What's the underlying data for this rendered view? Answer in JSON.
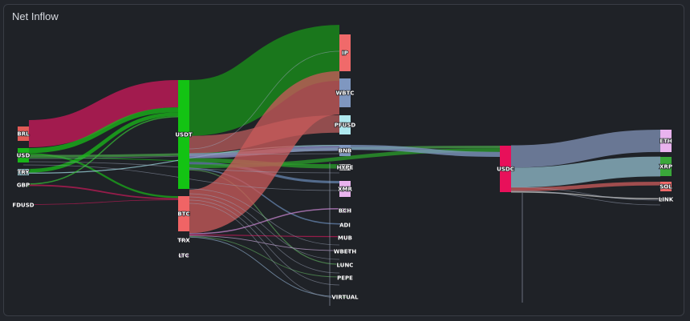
{
  "panel": {
    "title": "Net Inflow"
  },
  "chart_data": {
    "type": "sankey",
    "title": "Net Inflow",
    "nodes": [
      {
        "id": "BRL",
        "label": "BRL",
        "color": "#e05b56"
      },
      {
        "id": "USD",
        "label": "USD",
        "color": "#19b519"
      },
      {
        "id": "TRY",
        "label": "TRY",
        "color": "#a8e6ee"
      },
      {
        "id": "GBP",
        "label": "GBP",
        "color": "#36c236"
      },
      {
        "id": "FDUSD",
        "label": "FDUSD",
        "color": "#e6d3ea"
      },
      {
        "id": "USDT",
        "label": "USDT",
        "color": "#13c313"
      },
      {
        "id": "BTC",
        "label": "BTC",
        "color": "#f06465"
      },
      {
        "id": "TRX",
        "label": "TRX",
        "color": "#e6cfe9"
      },
      {
        "id": "LTC",
        "label": "LTC",
        "color": "#c995d5"
      },
      {
        "id": "IP",
        "label": "IP",
        "color": "#f06a6a"
      },
      {
        "id": "WBTC",
        "label": "WBTC",
        "color": "#7f97c0"
      },
      {
        "id": "PFUSD",
        "label": "PFUSD",
        "color": "#aee8ef"
      },
      {
        "id": "BNB",
        "label": "BNB",
        "color": "#7f97c0"
      },
      {
        "id": "HYPE",
        "label": "HYPE",
        "color": "#d6d6d6"
      },
      {
        "id": "XMR",
        "label": "XMR",
        "color": "#e9b3ee"
      },
      {
        "id": "BCH",
        "label": "BCH",
        "color": "#e9b3ee"
      },
      {
        "id": "ADI",
        "label": "ADI",
        "color": "#7f97c0"
      },
      {
        "id": "MUB",
        "label": "MUB",
        "color": "#e0335a"
      },
      {
        "id": "WBETH",
        "label": "WBETH",
        "color": "#d8c8e0"
      },
      {
        "id": "LUNC",
        "label": "LUNC",
        "color": "#7c9e7c"
      },
      {
        "id": "PEPE",
        "label": "PEPE",
        "color": "#5aa05a"
      },
      {
        "id": "VIRTUAL",
        "label": "VIRTUAL",
        "color": "#5aa05a"
      },
      {
        "id": "USDC",
        "label": "USDC",
        "color": "#e8105a"
      },
      {
        "id": "ETH",
        "label": "ETH",
        "color": "#e9b3ee"
      },
      {
        "id": "XRP",
        "label": "XRP",
        "color": "#3aa83a"
      },
      {
        "id": "SOL",
        "label": "SOL",
        "color": "#f06a6a"
      },
      {
        "id": "LINK",
        "label": "LINK",
        "color": "#d6d6d6"
      }
    ],
    "links": [
      {
        "source": "BRL",
        "target": "USDT",
        "value": 22,
        "color": "#c8195a"
      },
      {
        "source": "USD",
        "target": "USDT",
        "value": 4,
        "color": "#19b519"
      },
      {
        "source": "USD",
        "target": "BTC",
        "value": 1.5,
        "color": "#19b519"
      },
      {
        "source": "USD",
        "target": "USDC",
        "value": 2,
        "color": "#4aa84a"
      },
      {
        "source": "USD",
        "target": "HYPE",
        "value": 0.6,
        "color": "#19b519"
      },
      {
        "source": "TRY",
        "target": "USDT",
        "value": 3,
        "color": "#19b519"
      },
      {
        "source": "TRY",
        "target": "BNB",
        "value": 0.8,
        "color": "#a8e6ee"
      },
      {
        "source": "GBP",
        "target": "USDT",
        "value": 1,
        "color": "#36c236"
      },
      {
        "source": "GBP",
        "target": "BTC",
        "value": 1.2,
        "color": "#c8195a"
      },
      {
        "source": "FDUSD",
        "target": "BTC",
        "value": 0.4,
        "color": "#c8195a"
      },
      {
        "source": "USDT",
        "target": "IP",
        "value": 45,
        "color": "#1a8f1a"
      },
      {
        "source": "USDT",
        "target": "PFUSD",
        "value": 14,
        "color": "#b45a5a"
      },
      {
        "source": "USDT",
        "target": "BNB",
        "value": 4,
        "color": "#8c90c8"
      },
      {
        "source": "USDT",
        "target": "HYPE",
        "value": 3,
        "color": "#2a9a2a"
      },
      {
        "source": "USDT",
        "target": "XMR",
        "value": 2,
        "color": "#6a8ab8"
      },
      {
        "source": "USDT",
        "target": "USDC",
        "value": 3,
        "color": "#2a9a2a"
      },
      {
        "source": "USDT",
        "target": "ADI",
        "value": 1,
        "color": "#6a8ab8"
      },
      {
        "source": "USDT",
        "target": "LUNC",
        "value": 0.8,
        "color": "#5aa05a"
      },
      {
        "source": "BTC",
        "target": "WBTC",
        "value": 35,
        "color": "#c75a5a"
      },
      {
        "source": "BTC",
        "target": "BCH",
        "value": 1,
        "color": "#d08ad8"
      },
      {
        "source": "BTC",
        "target": "MUB",
        "value": 0.8,
        "color": "#c8195a"
      },
      {
        "source": "BTC",
        "target": "WBETH",
        "value": 0.6,
        "color": "#c8a8d8"
      },
      {
        "source": "BTC",
        "target": "PEPE",
        "value": 0.6,
        "color": "#5aa05a"
      },
      {
        "source": "BTC",
        "target": "VIRTUAL",
        "value": 0.6,
        "color": "#8aa8c8"
      },
      {
        "source": "BNB",
        "target": "USDC",
        "value": 4,
        "color": "#7f97c0"
      },
      {
        "source": "USDC",
        "target": "ETH",
        "value": 18,
        "color": "#7f90b4"
      },
      {
        "source": "USDC",
        "target": "XRP",
        "value": 16,
        "color": "#8fb8c8"
      },
      {
        "source": "USDC",
        "target": "SOL",
        "value": 3,
        "color": "#c75a5a"
      },
      {
        "source": "USDC",
        "target": "LINK",
        "value": 1,
        "color": "#d6d6d6"
      }
    ]
  }
}
